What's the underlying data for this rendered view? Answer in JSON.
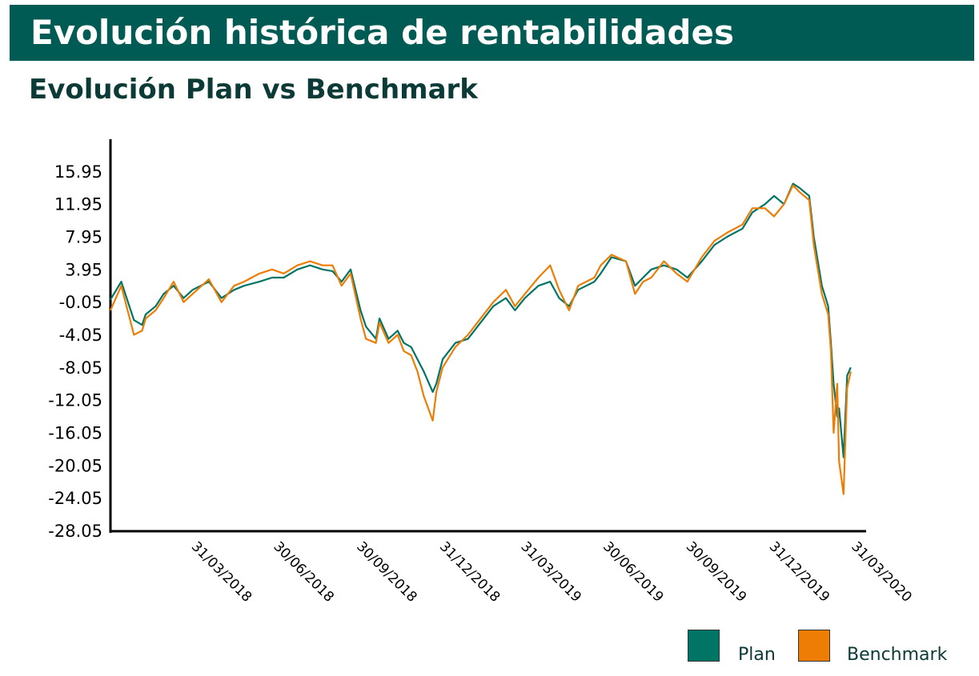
{
  "header": {
    "title": "Evolución histórica de rentabilidades",
    "subtitle": "Evolución Plan vs Benchmark"
  },
  "colors": {
    "banner": "#005b55",
    "plan": "#007565",
    "benchmark": "#ee7d05",
    "axis": "#000000"
  },
  "chart_data": {
    "type": "line",
    "title": "Evolución Plan vs Benchmark",
    "xlabel": "",
    "ylabel": "",
    "x_ticks": [
      "31/03/2018",
      "30/06/2018",
      "30/09/2018",
      "31/12/2018",
      "31/03/2019",
      "30/06/2019",
      "30/09/2019",
      "31/12/2019",
      "31/03/2020"
    ],
    "y_ticks": [
      "15.95",
      "11.95",
      "7.95",
      "3.95",
      "-0.05",
      "-4.05",
      "-8.05",
      "-12.05",
      "-16.05",
      "-20.05",
      "-24.05",
      "-28.05"
    ],
    "ylim": [
      -28.05,
      19.95
    ],
    "xlim": [
      "2018-01-01",
      "2020-04-17"
    ],
    "grid": false,
    "legend_position": "bottom-right",
    "series": [
      {
        "name": "Plan",
        "x": [
          "2018-01-01",
          "2018-01-13",
          "2018-01-27",
          "2018-02-05",
          "2018-02-09",
          "2018-02-20",
          "2018-03-01",
          "2018-03-12",
          "2018-03-23",
          "2018-04-02",
          "2018-04-20",
          "2018-05-04",
          "2018-05-18",
          "2018-05-29",
          "2018-06-15",
          "2018-06-29",
          "2018-07-12",
          "2018-07-27",
          "2018-08-10",
          "2018-08-24",
          "2018-09-04",
          "2018-09-14",
          "2018-09-24",
          "2018-10-05",
          "2018-10-11",
          "2018-10-22",
          "2018-10-26",
          "2018-11-05",
          "2018-11-15",
          "2018-11-22",
          "2018-11-30",
          "2018-12-07",
          "2018-12-14",
          "2018-12-24",
          "2018-12-28",
          "2019-01-04",
          "2019-01-18",
          "2019-02-01",
          "2019-02-15",
          "2019-03-01",
          "2019-03-15",
          "2019-03-25",
          "2019-04-05",
          "2019-04-20",
          "2019-05-03",
          "2019-05-13",
          "2019-05-24",
          "2019-06-03",
          "2019-06-21",
          "2019-06-28",
          "2019-07-10",
          "2019-07-26",
          "2019-08-05",
          "2019-08-14",
          "2019-08-23",
          "2019-09-06",
          "2019-09-20",
          "2019-10-02",
          "2019-10-18",
          "2019-11-01",
          "2019-11-15",
          "2019-12-02",
          "2019-12-13",
          "2019-12-27",
          "2020-01-06",
          "2020-01-17",
          "2020-01-27",
          "2020-02-03",
          "2020-02-14",
          "2020-02-19",
          "2020-02-28",
          "2020-03-06",
          "2020-03-09",
          "2020-03-12",
          "2020-03-16",
          "2020-03-18",
          "2020-03-23",
          "2020-03-27",
          "2020-03-31"
        ],
        "y": [
          0.3,
          2.5,
          -2.2,
          -2.8,
          -1.5,
          -0.5,
          1.0,
          2.0,
          0.5,
          1.5,
          2.5,
          0.5,
          1.5,
          2.0,
          2.5,
          3.0,
          3.0,
          4.0,
          4.5,
          4.0,
          3.8,
          2.5,
          4.0,
          -1.0,
          -3.0,
          -4.5,
          -2.0,
          -4.5,
          -3.5,
          -5.0,
          -5.5,
          -7.0,
          -8.5,
          -11.0,
          -10.0,
          -7.0,
          -5.0,
          -4.5,
          -2.5,
          -0.5,
          0.5,
          -1.0,
          0.5,
          2.0,
          2.5,
          0.5,
          -0.5,
          1.5,
          2.5,
          3.5,
          5.5,
          5.0,
          2.0,
          3.0,
          4.0,
          4.5,
          4.0,
          3.0,
          5.0,
          7.0,
          8.0,
          9.0,
          11.0,
          12.0,
          13.0,
          12.0,
          14.5,
          14.0,
          13.0,
          8.0,
          2.0,
          -0.5,
          -5.0,
          -10.0,
          -14.0,
          -13.0,
          -19.0,
          -9.0,
          -8.0
        ]
      },
      {
        "name": "Benchmark",
        "x": [
          "2018-01-01",
          "2018-01-13",
          "2018-01-27",
          "2018-02-05",
          "2018-02-09",
          "2018-02-20",
          "2018-03-01",
          "2018-03-12",
          "2018-03-23",
          "2018-04-02",
          "2018-04-20",
          "2018-05-04",
          "2018-05-18",
          "2018-05-29",
          "2018-06-15",
          "2018-06-29",
          "2018-07-12",
          "2018-07-27",
          "2018-08-10",
          "2018-08-24",
          "2018-09-04",
          "2018-09-14",
          "2018-09-24",
          "2018-10-05",
          "2018-10-11",
          "2018-10-22",
          "2018-10-26",
          "2018-11-05",
          "2018-11-15",
          "2018-11-22",
          "2018-11-30",
          "2018-12-07",
          "2018-12-14",
          "2018-12-24",
          "2018-12-28",
          "2019-01-04",
          "2019-01-18",
          "2019-02-01",
          "2019-02-15",
          "2019-03-01",
          "2019-03-15",
          "2019-03-25",
          "2019-04-05",
          "2019-04-20",
          "2019-05-03",
          "2019-05-13",
          "2019-05-24",
          "2019-06-03",
          "2019-06-21",
          "2019-06-28",
          "2019-07-10",
          "2019-07-26",
          "2019-08-05",
          "2019-08-14",
          "2019-08-23",
          "2019-09-06",
          "2019-09-20",
          "2019-10-02",
          "2019-10-18",
          "2019-11-01",
          "2019-11-15",
          "2019-12-02",
          "2019-12-13",
          "2019-12-27",
          "2020-01-06",
          "2020-01-17",
          "2020-01-27",
          "2020-02-03",
          "2020-02-14",
          "2020-02-19",
          "2020-02-28",
          "2020-03-06",
          "2020-03-09",
          "2020-03-12",
          "2020-03-16",
          "2020-03-18",
          "2020-03-23",
          "2020-03-27",
          "2020-03-31"
        ],
        "y": [
          -1.0,
          2.0,
          -4.0,
          -3.5,
          -2.0,
          -1.0,
          0.5,
          2.5,
          0.0,
          1.0,
          2.8,
          0.0,
          2.0,
          2.5,
          3.5,
          4.0,
          3.5,
          4.5,
          5.0,
          4.5,
          4.5,
          2.0,
          3.5,
          -2.0,
          -4.5,
          -5.0,
          -2.5,
          -5.0,
          -4.0,
          -6.0,
          -6.5,
          -8.5,
          -11.5,
          -14.5,
          -11.0,
          -8.0,
          -5.5,
          -4.0,
          -2.0,
          0.0,
          1.5,
          -0.5,
          1.0,
          3.0,
          4.5,
          1.5,
          -1.0,
          2.0,
          3.0,
          4.5,
          5.8,
          5.0,
          1.0,
          2.5,
          3.0,
          5.0,
          3.5,
          2.5,
          5.5,
          7.5,
          8.5,
          9.5,
          11.5,
          11.5,
          10.5,
          12.0,
          14.3,
          13.5,
          12.5,
          7.0,
          1.0,
          -1.5,
          -6.0,
          -16.0,
          -10.0,
          -19.5,
          -23.5,
          -10.5,
          -8.5
        ]
      }
    ]
  },
  "legend": {
    "items": [
      {
        "label": "Plan",
        "color": "#007565"
      },
      {
        "label": "Benchmark",
        "color": "#ee7d05"
      }
    ]
  }
}
